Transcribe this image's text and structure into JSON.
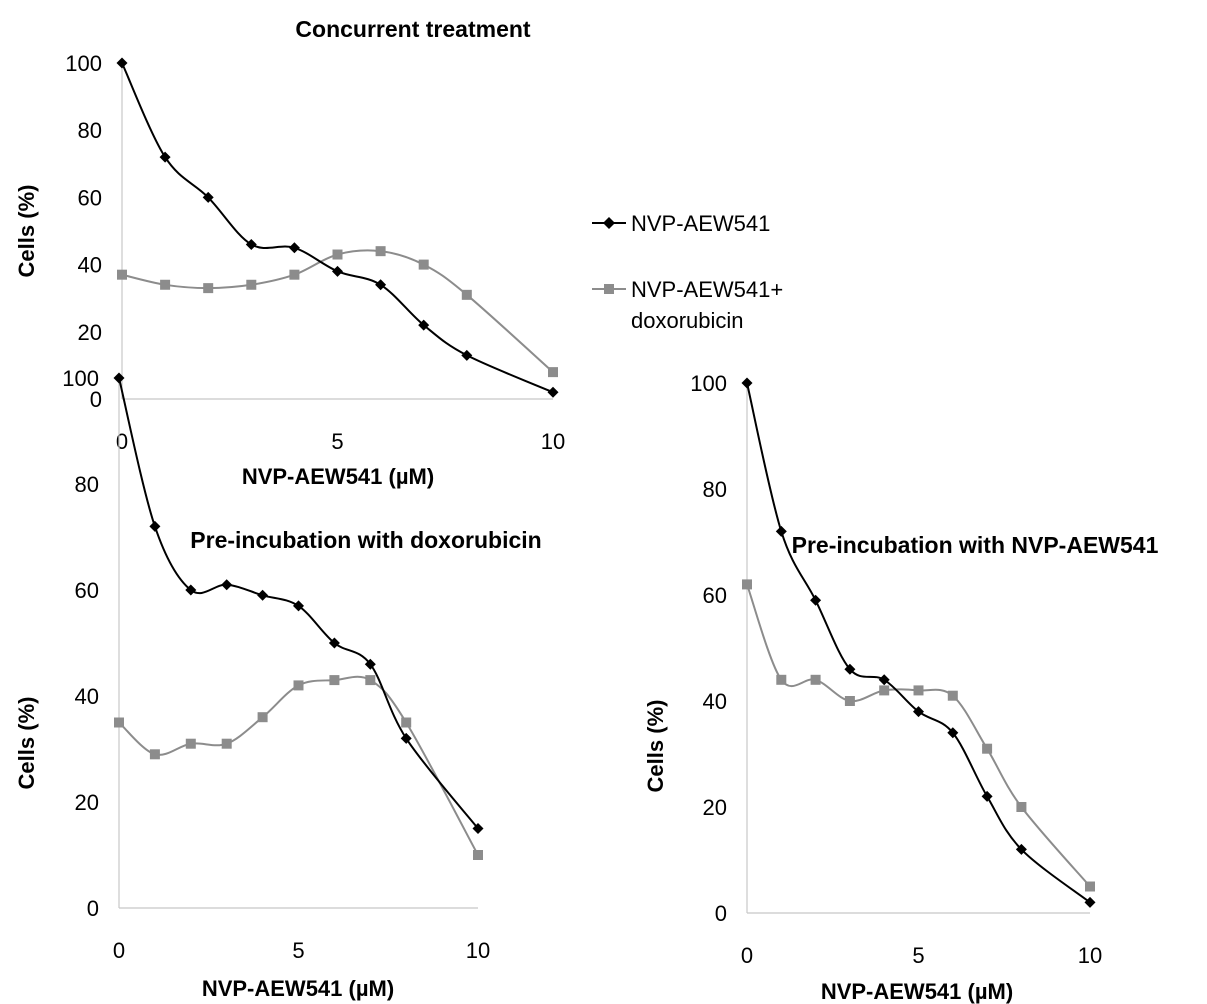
{
  "legend": {
    "entries": [
      {
        "label": "NVP-AEW541",
        "color": "#000000",
        "marker": "diamond"
      },
      {
        "label_lines": [
          "NVP-AEW541+",
          "doxorubicin"
        ],
        "color": "#8c8c8c",
        "marker": "square"
      }
    ]
  },
  "chart_data": [
    {
      "type": "line",
      "title": "Concurrent treatment",
      "xlabel": "NVP-AEW541 (µM)",
      "ylabel": "Cells (%)",
      "xlim": [
        0,
        10
      ],
      "ylim": [
        0,
        100
      ],
      "xticks": [
        0,
        5,
        10
      ],
      "yticks": [
        0,
        20,
        40,
        60,
        80,
        100
      ],
      "x": [
        0,
        1,
        2,
        3,
        4,
        5,
        6,
        7,
        8,
        10
      ],
      "series": [
        {
          "name": "NVP-AEW541",
          "color": "#000000",
          "marker": "diamond",
          "values": [
            100,
            72,
            60,
            46,
            45,
            38,
            34,
            22,
            13,
            2
          ]
        },
        {
          "name": "NVP-AEW541+ doxorubicin",
          "color": "#8c8c8c",
          "marker": "square",
          "values": [
            37,
            34,
            33,
            34,
            37,
            43,
            44,
            40,
            31,
            8
          ]
        }
      ],
      "grid": false,
      "legend": "right"
    },
    {
      "type": "line",
      "title": "Pre-incubation with doxorubicin",
      "xlabel": "NVP-AEW541 (µM)",
      "ylabel": "Cells (%)",
      "xlim": [
        0,
        10
      ],
      "ylim": [
        0,
        100
      ],
      "xticks": [
        0,
        5,
        10
      ],
      "yticks": [
        0,
        20,
        40,
        60,
        80,
        100
      ],
      "x": [
        0,
        1,
        2,
        3,
        4,
        5,
        6,
        7,
        8,
        10
      ],
      "series": [
        {
          "name": "NVP-AEW541",
          "color": "#000000",
          "marker": "diamond",
          "values": [
            100,
            72,
            60,
            61,
            59,
            57,
            50,
            46,
            32,
            15
          ]
        },
        {
          "name": "NVP-AEW541+ doxorubicin",
          "color": "#8c8c8c",
          "marker": "square",
          "values": [
            35,
            29,
            31,
            31,
            36,
            42,
            43,
            43,
            35,
            10
          ]
        }
      ],
      "grid": false
    },
    {
      "type": "line",
      "title": "Pre-incubation with NVP-AEW541",
      "xlabel": "NVP-AEW541 (µM)",
      "ylabel": "Cells (%)",
      "xlim": [
        0,
        10
      ],
      "ylim": [
        0,
        100
      ],
      "xticks": [
        0,
        5,
        10
      ],
      "yticks": [
        0,
        20,
        40,
        60,
        80,
        100
      ],
      "x": [
        0,
        1,
        2,
        3,
        4,
        5,
        6,
        7,
        8,
        10
      ],
      "series": [
        {
          "name": "NVP-AEW541",
          "color": "#000000",
          "marker": "diamond",
          "values": [
            100,
            72,
            59,
            46,
            44,
            38,
            34,
            22,
            12,
            2
          ]
        },
        {
          "name": "NVP-AEW541+ doxorubicin",
          "color": "#8c8c8c",
          "marker": "square",
          "values": [
            62,
            44,
            44,
            40,
            42,
            42,
            41,
            31,
            20,
            5
          ]
        }
      ],
      "grid": false
    }
  ]
}
